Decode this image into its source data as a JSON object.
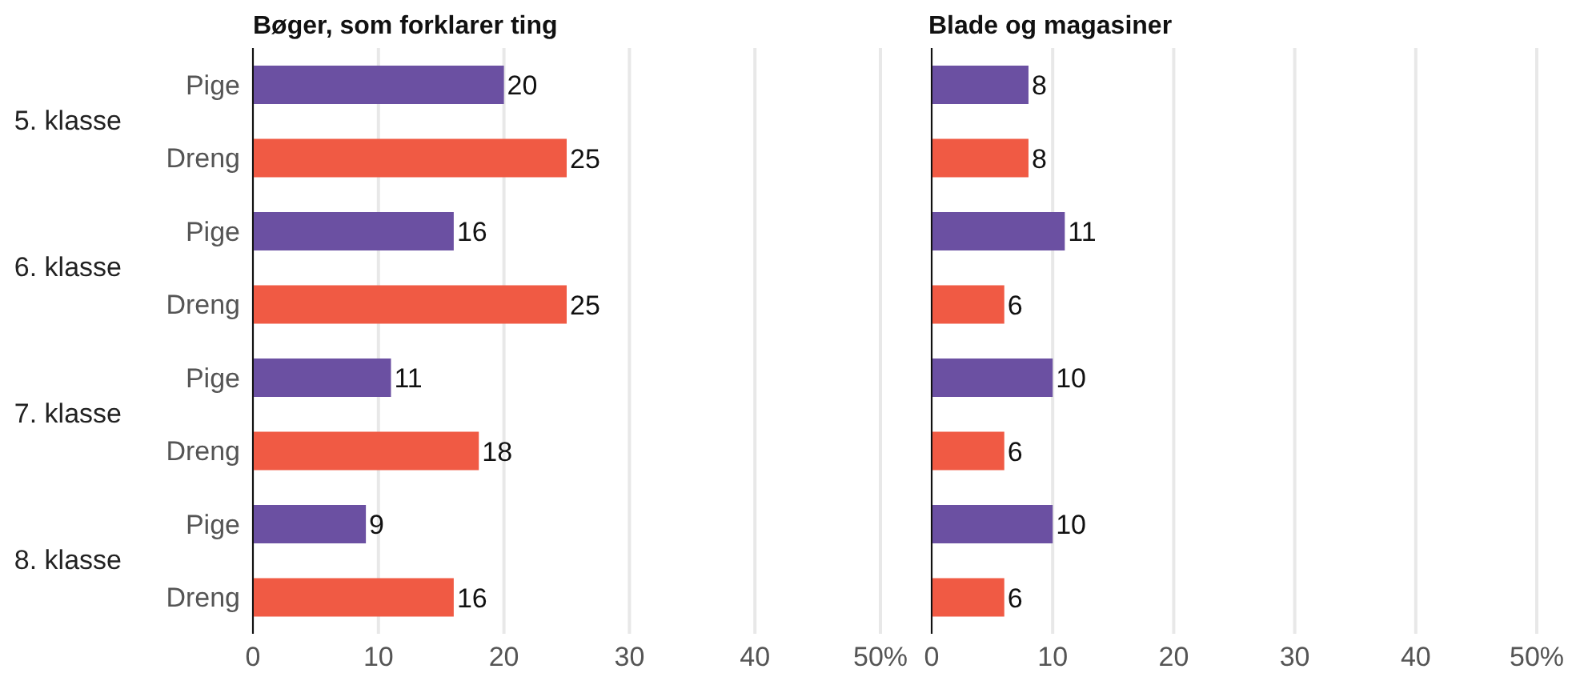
{
  "chart_data": [
    {
      "type": "bar",
      "orientation": "horizontal",
      "title": "Bøger, som forklarer ting",
      "categories": [
        "5. klasse",
        "6. klasse",
        "7. klasse",
        "8. klasse"
      ],
      "series": [
        {
          "name": "Pige",
          "color": "#6b50a2",
          "values": [
            20,
            16,
            11,
            9
          ]
        },
        {
          "name": "Dreng",
          "color": "#f05a44",
          "values": [
            25,
            25,
            18,
            16
          ]
        }
      ],
      "xlim": [
        0,
        50
      ],
      "xticks": [
        0,
        10,
        20,
        30,
        40,
        {
          "value": 50,
          "label": "50%"
        }
      ],
      "grid": "x",
      "data_labels": true
    },
    {
      "type": "bar",
      "orientation": "horizontal",
      "title": "Blade og magasiner",
      "categories": [
        null,
        null,
        null,
        null
      ],
      "series": [
        {
          "color": "#6b50a2",
          "values": [
            8,
            11,
            10,
            10
          ]
        },
        {
          "color": "#f05a44",
          "values": [
            8,
            6,
            6,
            6
          ]
        }
      ],
      "xlim": [
        0,
        50
      ],
      "xticks": [
        0,
        10,
        20,
        30,
        40,
        {
          "value": 50,
          "label": "50%"
        }
      ],
      "grid": "x",
      "data_labels": true,
      "tick_labels": "x"
    }
  ]
}
